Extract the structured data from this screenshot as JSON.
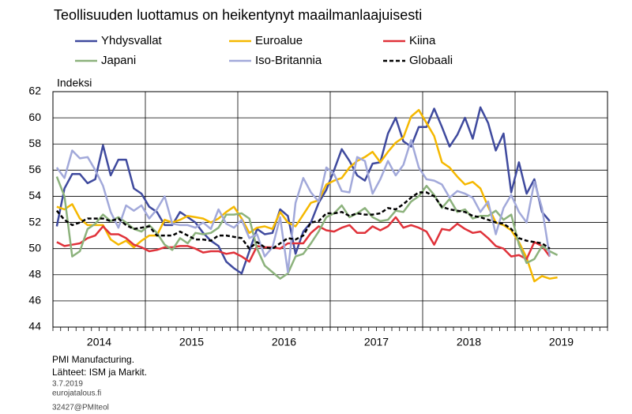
{
  "chart_data": {
    "type": "line",
    "title": "Teollisuuden luottamus on heikentynyt  maailmanlaajuisesti",
    "y_label": "Indeksi",
    "categories": [
      null,
      null,
      null,
      null,
      null,
      null,
      "2014",
      null,
      null,
      null,
      null,
      null,
      null,
      null,
      null,
      null,
      null,
      null,
      "2015",
      null,
      null,
      null,
      null,
      null,
      null,
      null,
      null,
      null,
      null,
      null,
      "2016",
      null,
      null,
      null,
      null,
      null,
      null,
      null,
      null,
      null,
      null,
      null,
      "2017",
      null,
      null,
      null,
      null,
      null,
      null,
      null,
      null,
      null,
      null,
      null,
      "2018",
      null,
      null,
      null,
      null,
      null,
      null,
      null,
      null,
      null,
      null,
      null,
      "2019",
      null,
      null,
      null,
      null,
      null
    ],
    "ylim": [
      44,
      62
    ],
    "yticks": [
      44,
      46,
      48,
      50,
      52,
      54,
      56,
      58,
      60,
      62
    ],
    "grid": true,
    "series": [
      {
        "name": "Yhdysvallat",
        "color": "#3f4a9e",
        "values": [
          51.7,
          54.6,
          55.7,
          55.7,
          55.0,
          55.3,
          57.9,
          55.6,
          56.8,
          56.8,
          54.6,
          54.2,
          53.2,
          52.8,
          51.8,
          51.8,
          52.8,
          52.4,
          52.0,
          51.2,
          50.6,
          50.2,
          49.0,
          48.5,
          48.1,
          49.8,
          51.5,
          51.1,
          51.2,
          53.0,
          52.5,
          49.6,
          51.3,
          52.0,
          53.5,
          54.5,
          56.0,
          57.6,
          56.7,
          55.6,
          55.2,
          56.5,
          56.6,
          58.8,
          60.0,
          58.2,
          57.8,
          59.3,
          59.3,
          60.7,
          59.3,
          57.8,
          58.7,
          60.0,
          58.4,
          60.8,
          59.6,
          57.5,
          58.8,
          54.3,
          56.6,
          54.2,
          55.3,
          52.8,
          52.1,
          null,
          null,
          null,
          null,
          null,
          null,
          null
        ]
      },
      {
        "name": "Euroalue",
        "color": "#f5b800",
        "values": [
          53.2,
          53.0,
          53.4,
          52.3,
          51.8,
          51.8,
          51.8,
          50.7,
          50.3,
          50.6,
          50.1,
          50.6,
          51.0,
          51.0,
          52.2,
          52.0,
          52.2,
          52.5,
          52.4,
          52.3,
          52.0,
          52.3,
          52.8,
          53.2,
          52.3,
          51.2,
          51.6,
          51.7,
          51.5,
          52.8,
          52.0,
          51.7,
          52.6,
          53.5,
          53.7,
          54.9,
          55.2,
          55.4,
          56.2,
          56.7,
          57.0,
          57.4,
          56.6,
          57.4,
          58.1,
          58.5,
          60.1,
          60.6,
          59.6,
          58.6,
          56.6,
          56.2,
          55.5,
          54.9,
          55.1,
          54.6,
          53.2,
          52.0,
          51.8,
          51.4,
          50.5,
          49.3,
          47.5,
          47.9,
          47.7,
          47.8,
          null,
          null,
          null,
          null,
          null,
          null
        ]
      },
      {
        "name": "Kiina",
        "color": "#e0323a",
        "values": [
          50.5,
          50.2,
          50.3,
          50.4,
          50.8,
          51.0,
          51.7,
          51.1,
          51.1,
          50.8,
          50.3,
          50.1,
          49.8,
          49.9,
          50.1,
          50.1,
          50.2,
          50.2,
          50.0,
          49.7,
          49.8,
          49.8,
          49.6,
          49.7,
          49.4,
          49.0,
          50.2,
          50.1,
          50.1,
          50.0,
          50.4,
          50.4,
          50.4,
          51.2,
          51.7,
          51.4,
          51.3,
          51.6,
          51.8,
          51.2,
          51.2,
          51.7,
          51.4,
          51.7,
          52.4,
          51.6,
          51.8,
          51.6,
          51.3,
          50.3,
          51.5,
          51.4,
          51.9,
          51.5,
          51.2,
          51.3,
          50.8,
          50.2,
          50.0,
          49.4,
          49.5,
          49.2,
          50.5,
          50.2,
          49.4,
          null,
          null,
          null,
          null,
          null,
          null,
          null
        ]
      },
      {
        "name": "Japani",
        "color": "#8cb27c",
        "values": [
          55.5,
          54.0,
          49.4,
          49.8,
          51.5,
          51.9,
          52.6,
          52.1,
          52.4,
          52.0,
          51.5,
          51.3,
          51.8,
          51.2,
          50.3,
          49.9,
          50.8,
          50.4,
          51.2,
          51.1,
          51.2,
          51.6,
          52.6,
          52.6,
          52.7,
          52.3,
          50.0,
          48.7,
          48.2,
          47.7,
          48.1,
          49.4,
          49.6,
          50.4,
          51.3,
          52.4,
          52.7,
          53.3,
          52.4,
          52.7,
          53.1,
          52.4,
          52.1,
          52.2,
          52.9,
          52.8,
          53.6,
          54.0,
          54.8,
          54.1,
          53.1,
          53.8,
          52.8,
          53.0,
          52.3,
          52.5,
          52.5,
          52.9,
          52.2,
          52.6,
          50.3,
          48.9,
          49.2,
          50.2,
          49.8,
          49.5,
          null,
          null,
          null,
          null,
          null,
          null
        ]
      },
      {
        "name": "Iso-Britannia",
        "color": "#a2a9da",
        "values": [
          56.2,
          55.4,
          57.5,
          56.9,
          57.0,
          56.0,
          54.8,
          52.8,
          51.6,
          53.3,
          52.9,
          53.3,
          52.3,
          53.0,
          54.0,
          51.9,
          51.8,
          51.8,
          51.6,
          52.0,
          51.5,
          53.0,
          51.9,
          51.6,
          52.2,
          50.8,
          51.1,
          49.4,
          50.1,
          52.4,
          48.2,
          53.5,
          55.4,
          54.3,
          53.6,
          56.2,
          55.7,
          54.4,
          54.3,
          57.0,
          56.7,
          54.2,
          55.3,
          56.7,
          55.6,
          56.4,
          58.3,
          56.2,
          55.3,
          55.2,
          54.9,
          53.9,
          54.4,
          54.2,
          53.9,
          52.8,
          53.6,
          51.1,
          53.1,
          54.1,
          52.8,
          52.0,
          55.1,
          53.1,
          49.4,
          null,
          null,
          null,
          null,
          null,
          null,
          null
        ]
      },
      {
        "name": "Globaali",
        "color": "#000000",
        "style": "dashed",
        "values": [
          52.9,
          52.2,
          51.8,
          52.0,
          52.3,
          52.3,
          52.3,
          52.1,
          52.3,
          51.8,
          51.5,
          51.6,
          51.7,
          51.0,
          51.0,
          51.0,
          51.3,
          51.0,
          50.7,
          50.7,
          50.6,
          51.0,
          51.0,
          50.9,
          50.8,
          50.0,
          50.5,
          50.1,
          50.0,
          50.4,
          50.8,
          50.7,
          51.0,
          52.0,
          52.1,
          52.7,
          52.7,
          52.8,
          52.5,
          52.7,
          52.6,
          52.6,
          52.7,
          53.1,
          53.0,
          53.4,
          53.9,
          54.3,
          54.3,
          54.0,
          53.2,
          53.0,
          52.9,
          52.8,
          52.5,
          52.4,
          52.2,
          52.0,
          51.9,
          51.5,
          50.8,
          50.6,
          50.5,
          50.4,
          50.0,
          null,
          null,
          null,
          null,
          null,
          null,
          null
        ]
      }
    ],
    "source": [
      "PMI Manufacturing.",
      "Lähteet: ISM ja Markit."
    ],
    "footer": [
      "3.7.2019",
      "eurojatalous.fi",
      "32427@PMIteol"
    ]
  }
}
